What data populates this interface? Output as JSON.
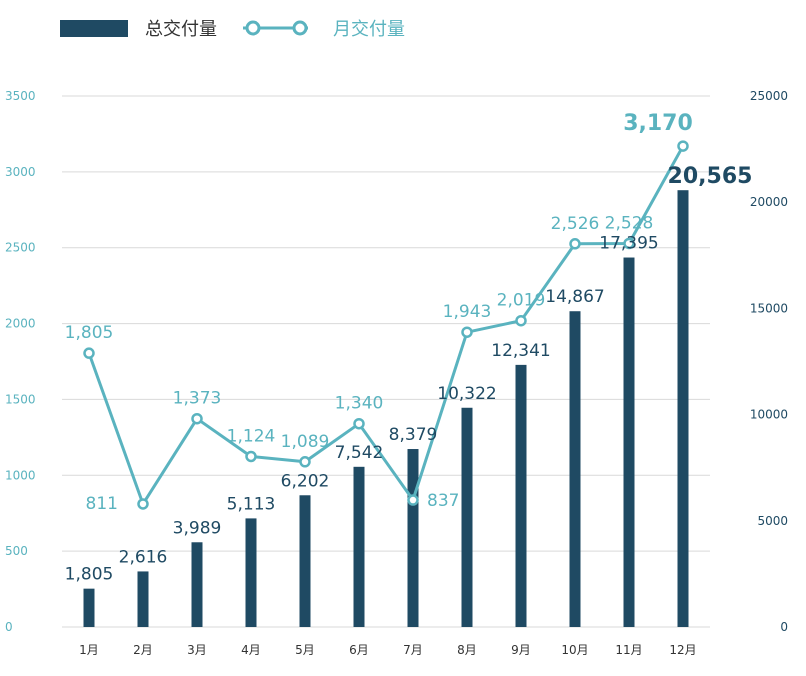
{
  "chart_data": {
    "type": "bar+line",
    "legend": [
      {
        "name": "总交付量",
        "kind": "bar",
        "color": "#1f4a63"
      },
      {
        "name": "月交付量",
        "kind": "line",
        "color": "#5ab3bf"
      }
    ],
    "legend_position": "top-left",
    "categories": [
      "1月",
      "2月",
      "3月",
      "4月",
      "5月",
      "6月",
      "7月",
      "8月",
      "9月",
      "10月",
      "11月",
      "12月"
    ],
    "series": [
      {
        "name": "总交付量",
        "type": "bar",
        "axis": "right",
        "color": "#1f4a63",
        "values": [
          1805,
          2616,
          3989,
          5113,
          6202,
          7542,
          8379,
          10322,
          12341,
          14867,
          17395,
          20565
        ],
        "labels": [
          "1,805",
          "2,616",
          "3,989",
          "5,113",
          "6,202",
          "7,542",
          "8,379",
          "10,322",
          "12,341",
          "14,867",
          "17,395",
          "20,565"
        ]
      },
      {
        "name": "月交付量",
        "type": "line",
        "axis": "left",
        "color": "#5ab3bf",
        "values": [
          1805,
          811,
          1373,
          1124,
          1089,
          1340,
          837,
          1943,
          2019,
          2526,
          2528,
          3170
        ],
        "labels": [
          "1,805",
          "811",
          "1,373",
          "1,124",
          "1,089",
          "1,340",
          "837",
          "1,943",
          "2,019",
          "2,526",
          "2,528",
          "3,170"
        ]
      }
    ],
    "left_axis": {
      "range": [
        0,
        3500
      ],
      "ticks": [
        "0",
        "500",
        "1000",
        "1500",
        "2000",
        "2500",
        "3000",
        "3500"
      ],
      "color": "#5ab3bf"
    },
    "right_axis": {
      "range": [
        0,
        25000
      ],
      "ticks": [
        "0",
        "5000",
        "10000",
        "15000",
        "20000",
        "25000"
      ],
      "color": "#1f4a63"
    },
    "grid": true,
    "emphasized_last_point": true
  }
}
